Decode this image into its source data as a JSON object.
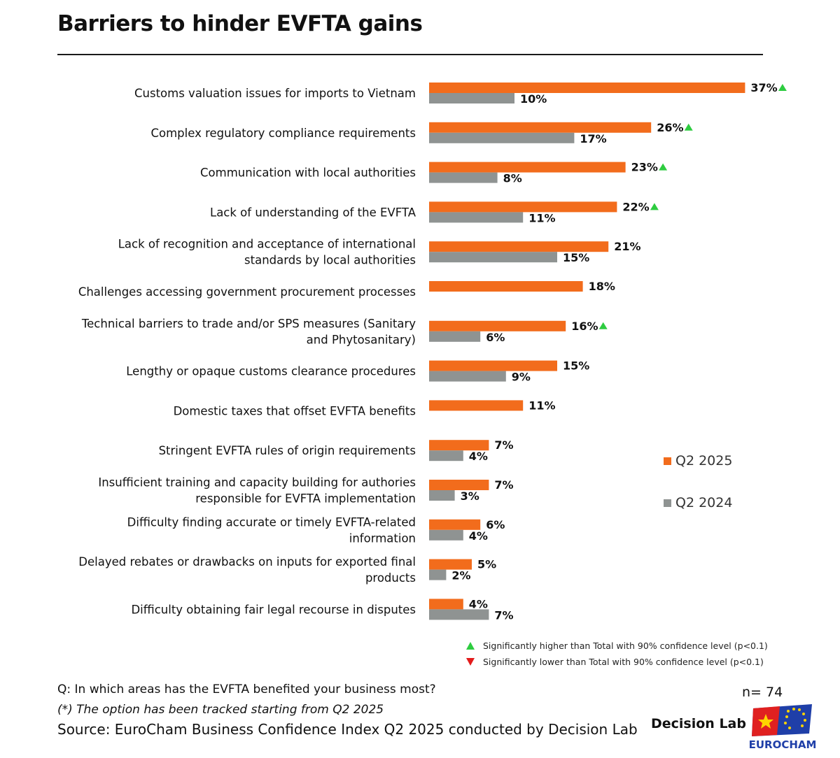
{
  "title": "Barriers to hinder EVFTA gains",
  "colors": {
    "q2_2025": "#f26c1c",
    "q2_2024": "#8f9392",
    "sig_up": "#2ecc40",
    "sig_down": "#e31b1b"
  },
  "chart_data": {
    "type": "bar",
    "orientation": "horizontal",
    "categories": [
      [
        "Customs valuation issues for imports to Vietnam"
      ],
      [
        "Complex regulatory compliance requirements"
      ],
      [
        "Communication with local authorities"
      ],
      [
        "Lack of understanding of the EVFTA"
      ],
      [
        "Lack of recognition and acceptance of international",
        "standards by local authorities"
      ],
      [
        "Challenges accessing government procurement processes"
      ],
      [
        "Technical barriers to trade and/or SPS  measures (Sanitary",
        "and Phytosanitary)"
      ],
      [
        "Lengthy or opaque customs clearance procedures"
      ],
      [
        "Domestic taxes that offset EVFTA benefits"
      ],
      [
        "Stringent EVFTA rules of origin requirements"
      ],
      [
        "Insufficient training and capacity building for authories",
        "responsible for EVFTA implementation"
      ],
      [
        "Difficulty finding accurate or timely EVFTA-related",
        "information"
      ],
      [
        "Delayed rebates or drawbacks on inputs for exported final",
        "products"
      ],
      [
        "Difficulty obtaining fair legal recourse in disputes"
      ]
    ],
    "series": [
      {
        "name": "Q2 2025",
        "values": [
          37,
          26,
          23,
          22,
          21,
          18,
          16,
          15,
          11,
          7,
          7,
          6,
          5,
          4
        ]
      },
      {
        "name": "Q2 2024",
        "values": [
          10,
          17,
          8,
          11,
          15,
          null,
          6,
          9,
          null,
          4,
          3,
          4,
          2,
          7
        ]
      }
    ],
    "value_suffix": "%",
    "significantly_higher": [
      true,
      true,
      true,
      true,
      false,
      false,
      true,
      false,
      false,
      false,
      false,
      false,
      false,
      false
    ],
    "legend_position": "right"
  },
  "legend": {
    "q2_2025": "Q2 2025",
    "q2_2024": "Q2 2024"
  },
  "significance": {
    "higher": "Significantly higher than Total with 90% confidence level (p<0.1)",
    "lower": "Significantly lower than Total with 90% confidence level (p<0.1)"
  },
  "footer": {
    "question": "Q: In which areas has the EVFTA benefited your business most?",
    "note": "(*) The option has been tracked starting from Q2 2025",
    "source": "Source: EuroCham Business Confidence Index Q2 2025 conducted by Decision Lab",
    "n": "n= 74",
    "decision_lab": "Decision Lab",
    "eurocham": "EUROCHAM"
  }
}
